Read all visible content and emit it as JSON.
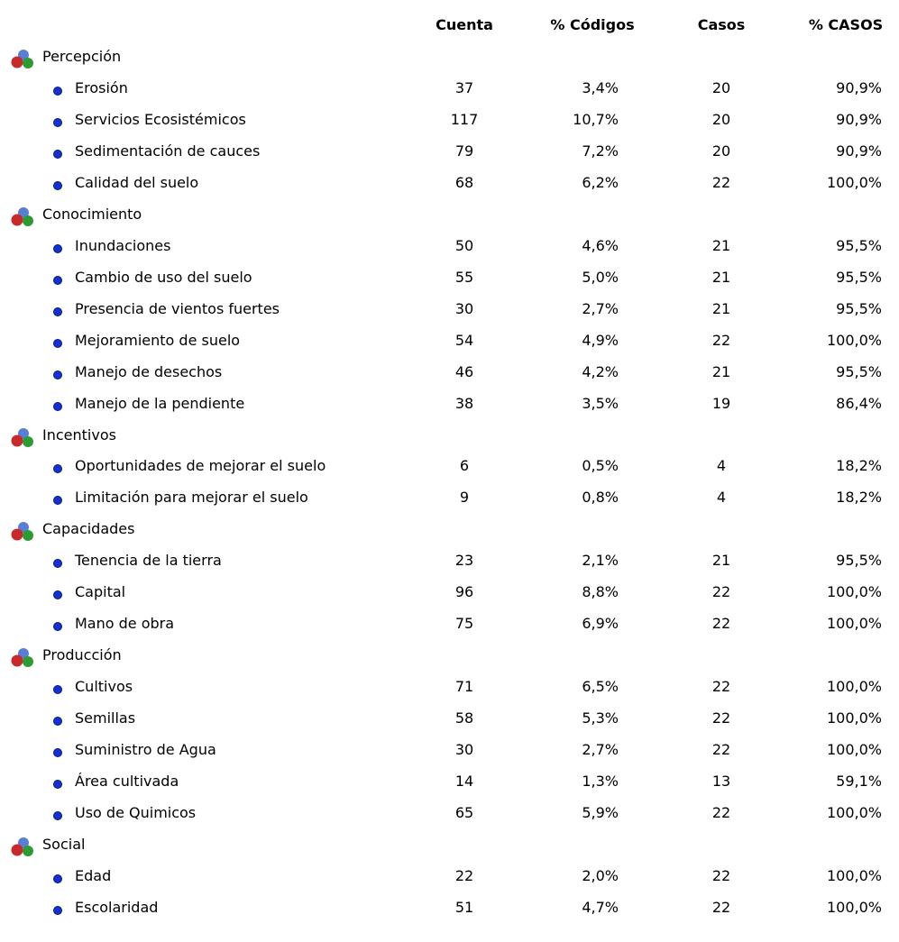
{
  "headers": [
    "Cuenta",
    "% Códigos",
    "Casos",
    "% CASOS"
  ],
  "groups": [
    {
      "name": "Percepción",
      "items": [
        {
          "label": "Erosión",
          "cuenta": 37,
          "codigos": "3,4%",
          "casos": 20,
          "pct_casos": "90,9%"
        },
        {
          "label": "Servicios Ecosistémicos",
          "cuenta": 117,
          "codigos": "10,7%",
          "casos": 20,
          "pct_casos": "90,9%"
        },
        {
          "label": "Sedimentación de cauces",
          "cuenta": 79,
          "codigos": "7,2%",
          "casos": 20,
          "pct_casos": "90,9%"
        },
        {
          "label": "Calidad del suelo",
          "cuenta": 68,
          "codigos": "6,2%",
          "casos": 22,
          "pct_casos": "100,0%"
        }
      ]
    },
    {
      "name": "Conocimiento",
      "items": [
        {
          "label": "Inundaciones",
          "cuenta": 50,
          "codigos": "4,6%",
          "casos": 21,
          "pct_casos": "95,5%"
        },
        {
          "label": "Cambio de uso del suelo",
          "cuenta": 55,
          "codigos": "5,0%",
          "casos": 21,
          "pct_casos": "95,5%"
        },
        {
          "label": "Presencia de vientos fuertes",
          "cuenta": 30,
          "codigos": "2,7%",
          "casos": 21,
          "pct_casos": "95,5%"
        },
        {
          "label": "Mejoramiento de suelo",
          "cuenta": 54,
          "codigos": "4,9%",
          "casos": 22,
          "pct_casos": "100,0%"
        },
        {
          "label": "Manejo de desechos",
          "cuenta": 46,
          "codigos": "4,2%",
          "casos": 21,
          "pct_casos": "95,5%"
        },
        {
          "label": "Manejo de la pendiente",
          "cuenta": 38,
          "codigos": "3,5%",
          "casos": 19,
          "pct_casos": "86,4%"
        }
      ]
    },
    {
      "name": "Incentivos",
      "items": [
        {
          "label": "Oportunidades de mejorar el suelo",
          "cuenta": 6,
          "codigos": "0,5%",
          "casos": 4,
          "pct_casos": "18,2%"
        },
        {
          "label": "Limitación para mejorar el suelo",
          "cuenta": 9,
          "codigos": "0,8%",
          "casos": 4,
          "pct_casos": "18,2%"
        }
      ]
    },
    {
      "name": "Capacidades",
      "items": [
        {
          "label": "Tenencia de la tierra",
          "cuenta": 23,
          "codigos": "2,1%",
          "casos": 21,
          "pct_casos": "95,5%"
        },
        {
          "label": "Capital",
          "cuenta": 96,
          "codigos": "8,8%",
          "casos": 22,
          "pct_casos": "100,0%"
        },
        {
          "label": "Mano de obra",
          "cuenta": 75,
          "codigos": "6,9%",
          "casos": 22,
          "pct_casos": "100,0%"
        }
      ]
    },
    {
      "name": "Producción",
      "items": [
        {
          "label": "Cultivos",
          "cuenta": 71,
          "codigos": "6,5%",
          "casos": 22,
          "pct_casos": "100,0%"
        },
        {
          "label": "Semillas",
          "cuenta": 58,
          "codigos": "5,3%",
          "casos": 22,
          "pct_casos": "100,0%"
        },
        {
          "label": "Suministro de Agua",
          "cuenta": 30,
          "codigos": "2,7%",
          "casos": 22,
          "pct_casos": "100,0%"
        },
        {
          "label": "Área cultivada",
          "cuenta": 14,
          "codigos": "1,3%",
          "casos": 13,
          "pct_casos": "59,1%"
        },
        {
          "label": "Uso de Quimicos",
          "cuenta": 65,
          "codigos": "5,9%",
          "casos": 22,
          "pct_casos": "100,0%"
        }
      ]
    },
    {
      "name": "Social",
      "items": [
        {
          "label": "Edad",
          "cuenta": 22,
          "codigos": "2,0%",
          "casos": 22,
          "pct_casos": "100,0%"
        },
        {
          "label": "Escolaridad",
          "cuenta": 51,
          "codigos": "4,7%",
          "casos": 22,
          "pct_casos": "100,0%"
        }
      ]
    }
  ]
}
